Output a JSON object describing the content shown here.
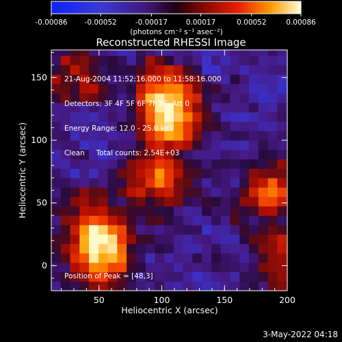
{
  "chart_data": {
    "type": "heatmap",
    "title": "Reconstructed RHESSI Image",
    "xlabel": "Heliocentric X (arcsec)",
    "ylabel": "Heliocentric Y (arcsec)",
    "xlim": [
      12,
      200
    ],
    "ylim": [
      -20,
      172
    ],
    "xticks": [
      "50",
      "100",
      "150",
      "200"
    ],
    "yticks": [
      "0",
      "50",
      "100",
      "150"
    ],
    "colorbar": {
      "ticks": [
        "-0.00086",
        "-0.00052",
        "-0.00017",
        "0.00017",
        "0.00052",
        "0.00086"
      ],
      "range": [
        -0.00086,
        0.00086
      ],
      "unit_label": "(photons cm⁻² s⁻¹ asec⁻²)"
    },
    "sources": [
      {
        "x": 48,
        "y": 3,
        "intensity": 1.0
      },
      {
        "x": 108,
        "y": 110,
        "intensity": 0.85
      },
      {
        "x": 95,
        "y": 135,
        "intensity": 0.7
      },
      {
        "x": 180,
        "y": 55,
        "intensity": 0.75
      },
      {
        "x": 90,
        "y": 65,
        "intensity": 0.7
      },
      {
        "x": 40,
        "y": 30,
        "intensity": 0.6
      },
      {
        "x": 190,
        "y": 0,
        "intensity": 0.65
      },
      {
        "x": 30,
        "y": 150,
        "intensity": 0.55
      }
    ],
    "peak_position": [
      48,
      3
    ]
  },
  "info": {
    "line1": "21-Aug-2004 11:52:16.000 to 11:58:16.000",
    "line2": "Detectors: 3F 4F 5F 6F 7F 8F, Att 0",
    "line3": "Energy Range: 12.0 - 25.0 keV",
    "line4": "Clean     Total counts: 2.54E+03"
  },
  "peak_text": "Position of Peak = [48,3]",
  "timestamp": "3-May-2022 04:18"
}
